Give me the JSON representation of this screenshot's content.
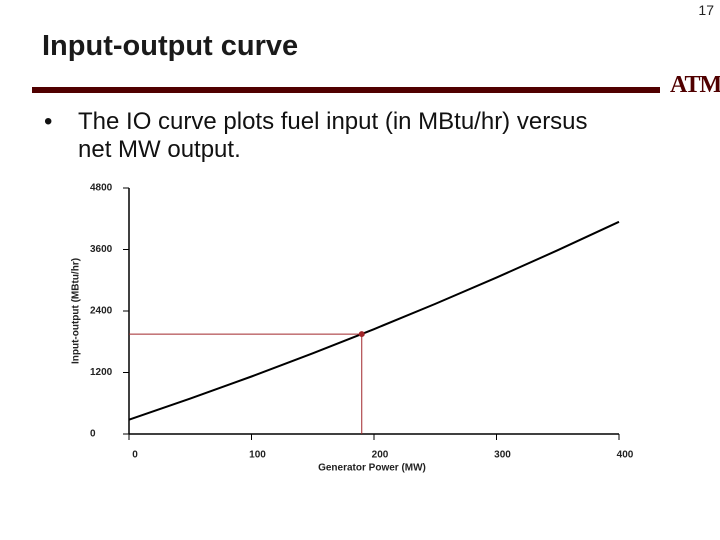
{
  "page_number": "17",
  "title": "Input-output curve",
  "logo": "ATM",
  "bullet": "The IO curve plots fuel input (in MBtu/hr) versus net MW output.",
  "chart_data": {
    "type": "line",
    "x_label": "Generator Power (MW)",
    "y_label": "Input-output (MBtu/hr)",
    "x": [
      0,
      50,
      100,
      150,
      200,
      250,
      300,
      350,
      400
    ],
    "values": [
      280,
      691,
      1122,
      1574,
      2046,
      2539,
      3052,
      3586,
      4140
    ],
    "color": "#000000",
    "point": {
      "x": 190,
      "y": 1950,
      "color": "#a0262a"
    },
    "xlim": [
      0,
      400
    ],
    "xticks": [
      0,
      100,
      200,
      300,
      400
    ],
    "ylim": [
      0,
      4800
    ],
    "yticks": [
      0,
      1200,
      2400,
      3600,
      4800
    ]
  }
}
